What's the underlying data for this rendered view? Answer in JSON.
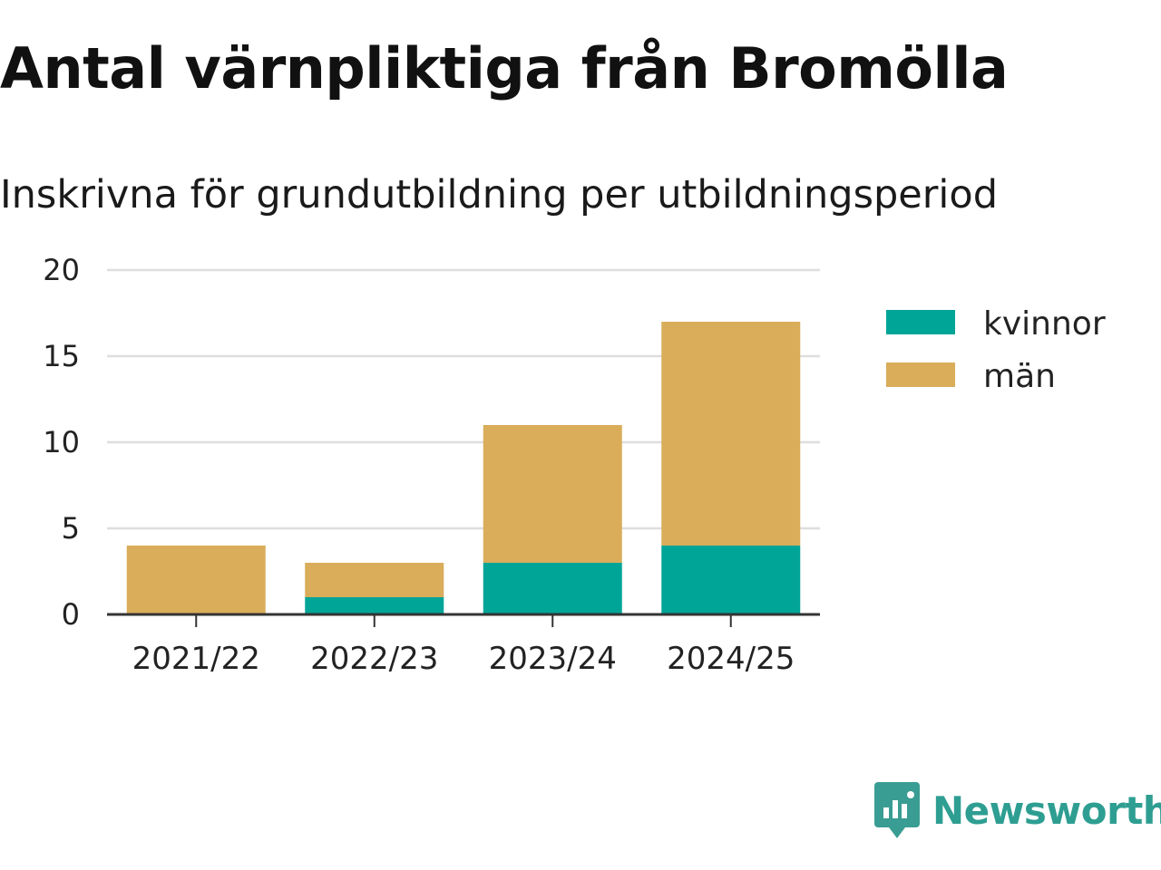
{
  "chart_data": {
    "type": "bar",
    "stacked": true,
    "title": "Antal värnpliktiga från Bromölla",
    "subtitle": "Inskrivna för grundutbildning per utbildningsperiod",
    "categories": [
      "2021/22",
      "2022/23",
      "2023/24",
      "2024/25"
    ],
    "series": [
      {
        "name": "kvinnor",
        "color": "#00a598",
        "values": [
          0,
          1,
          3,
          4
        ]
      },
      {
        "name": "män",
        "color": "#d9ad5a",
        "values": [
          4,
          2,
          8,
          13
        ]
      }
    ],
    "ylim": [
      0,
      20
    ],
    "yticks": [
      "0",
      "5",
      "10",
      "15",
      "20"
    ],
    "grid": true,
    "legend": "right"
  },
  "brand": {
    "name": "Newsworthy",
    "icon": "newsworthy-logo-icon",
    "color": "#2e9e92"
  }
}
